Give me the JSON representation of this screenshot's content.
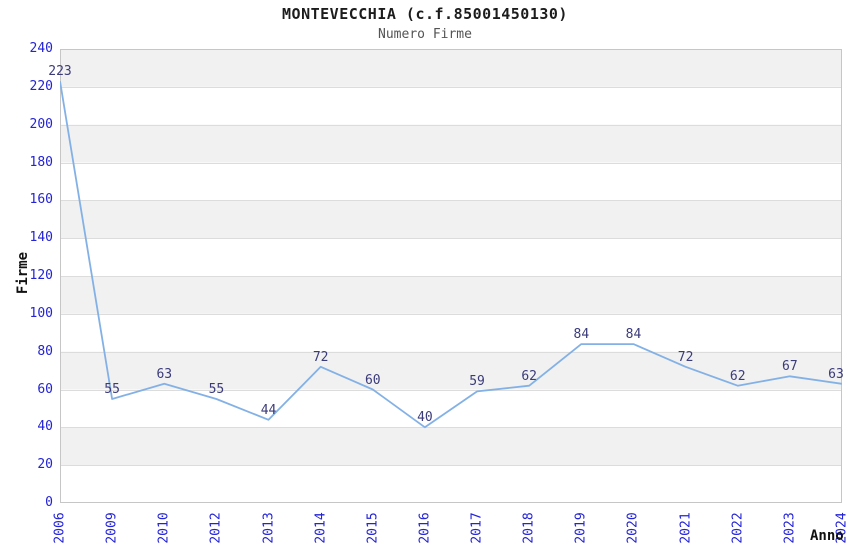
{
  "chart_data": {
    "type": "line",
    "title": "MONTEVECCHIA (c.f.85001450130)",
    "subtitle": "Numero Firme",
    "xlabel": "Anno",
    "ylabel": "Firme",
    "categories": [
      "2006",
      "2009",
      "2010",
      "2012",
      "2013",
      "2014",
      "2015",
      "2016",
      "2017",
      "2018",
      "2019",
      "2020",
      "2021",
      "2022",
      "2023",
      "2024"
    ],
    "values": [
      223,
      55,
      63,
      55,
      44,
      72,
      60,
      40,
      59,
      62,
      84,
      84,
      72,
      62,
      67,
      63
    ],
    "ylim": [
      0,
      240
    ],
    "y_step": 20,
    "grid": true,
    "banded_background": true,
    "legend": "none",
    "point_labels_visible": true
  },
  "colors": {
    "line": "#83b1e6",
    "tick_label": "#2323d7",
    "data_label": "#3b3b7a",
    "band_gray": "#f1f1f1",
    "band_white": "#ffffff",
    "gridline": "#dcdcdc",
    "plot_border": "#c6c6c6",
    "title": "#1c1c1c",
    "subtitle": "#545454",
    "axis_title": "#111111"
  }
}
